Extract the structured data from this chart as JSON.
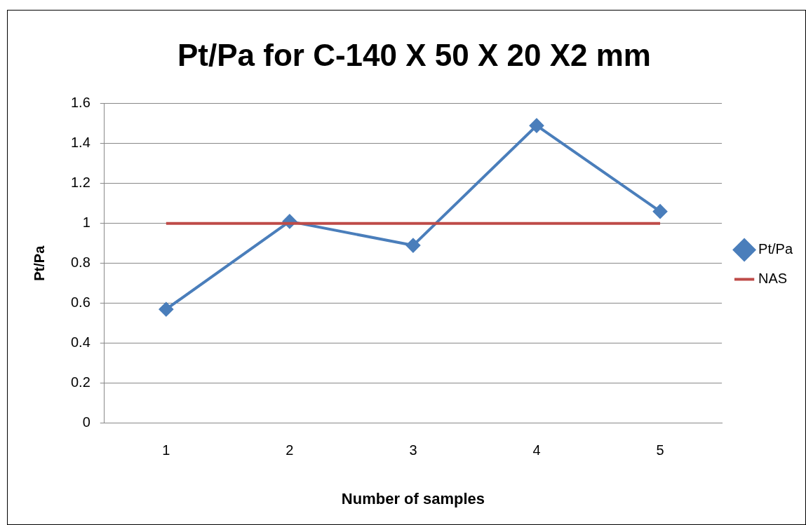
{
  "chart_data": {
    "type": "line",
    "title": "Pt/Pa for C-140 X 50 X 20 X2 mm",
    "xlabel": "Number of samples",
    "ylabel": "Pt/Pa",
    "categories": [
      "1",
      "2",
      "3",
      "4",
      "5"
    ],
    "series": [
      {
        "name": "Pt/Pa",
        "color": "#4a7ebb",
        "values": [
          0.57,
          1.01,
          0.89,
          1.49,
          1.06
        ],
        "marker": "diamond"
      },
      {
        "name": "NAS",
        "color": "#be4b48",
        "values": [
          1,
          1,
          1,
          1,
          1
        ],
        "marker": "none"
      }
    ],
    "ylim": [
      0,
      1.6
    ],
    "yticks": [
      0,
      0.2,
      0.4,
      0.6,
      0.8,
      1,
      1.2,
      1.4,
      1.6
    ],
    "grid": "y",
    "legend": "right"
  }
}
